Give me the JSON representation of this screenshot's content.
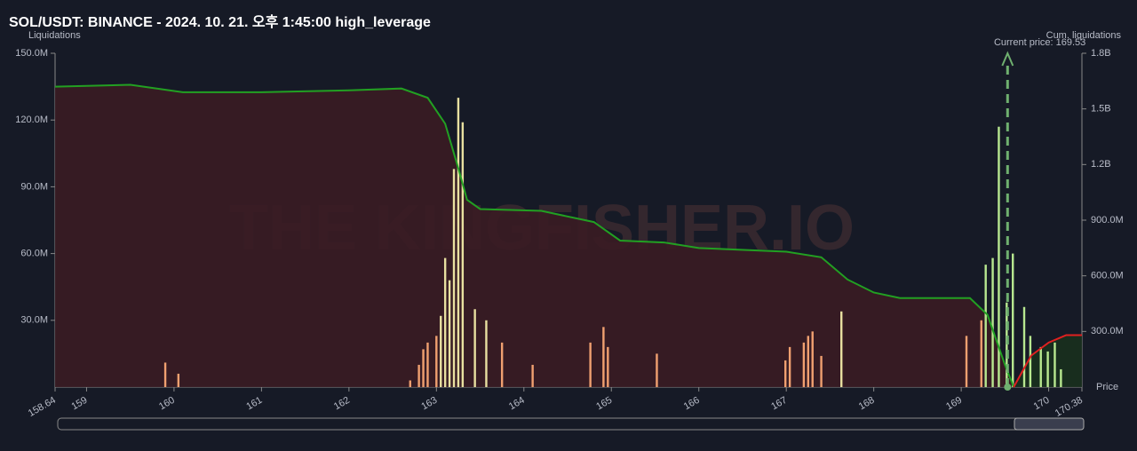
{
  "chart_data": {
    "type": "bar",
    "title": "SOL/USDT: BINANCE - 2024. 10. 21. 오후 1:45:00 high_leverage",
    "y_label": "Liquidations",
    "y2_label": "Cum. liquidations",
    "x_label": "Price",
    "annotation": "Current price: 169.53",
    "current_price": 169.53,
    "watermark": "THE KINGFISHER.IO",
    "xlim": [
      158.64,
      170.38
    ],
    "xticks": [
      158.64,
      159,
      160,
      161,
      162,
      163,
      164,
      165,
      166,
      167,
      168,
      169,
      170,
      170.38
    ],
    "ylim": [
      0,
      150000000
    ],
    "yticks": [
      {
        "value": 30000000,
        "label": "30.0M"
      },
      {
        "value": 60000000,
        "label": "60.0M"
      },
      {
        "value": 90000000,
        "label": "90.0M"
      },
      {
        "value": 120000000,
        "label": "120.0M"
      },
      {
        "value": 150000000,
        "label": "150.0M"
      }
    ],
    "y2lim": [
      0,
      1800000000
    ],
    "y2ticks": [
      {
        "value": 300000000,
        "label": "300.0M"
      },
      {
        "value": 600000000,
        "label": "600.0M"
      },
      {
        "value": 900000000,
        "label": "900.0M"
      },
      {
        "value": 1200000000,
        "label": "1.2B"
      },
      {
        "value": 1500000000,
        "label": "1.5B"
      },
      {
        "value": 1800000000,
        "label": "1.8B"
      }
    ],
    "series": [
      {
        "type": "bar",
        "color": "#f0a070",
        "x": [
          159.9,
          160.05,
          162.7,
          162.8,
          162.85,
          162.9,
          163.0,
          163.75,
          164.1,
          164.76,
          164.91,
          164.96,
          165.52,
          166.99,
          167.04,
          167.2,
          167.25,
          167.3,
          167.4,
          169.06,
          169.23
        ],
        "values": [
          11000000,
          6000000,
          3000000,
          10000000,
          17000000,
          20000000,
          23000000,
          20000000,
          10000000,
          20000000,
          27000000,
          18000000,
          15000000,
          12000000,
          18000000,
          20000000,
          23000000,
          25000000,
          14000000,
          23000000,
          30000000
        ]
      },
      {
        "type": "bar",
        "color": "#e8e0a0",
        "x": [
          163.05,
          163.1,
          163.15,
          163.2,
          163.25,
          163.3,
          163.44,
          163.57,
          167.63
        ],
        "values": [
          32000000,
          58000000,
          48000000,
          98000000,
          130000000,
          119000000,
          35000000,
          30000000,
          34000000
        ]
      },
      {
        "type": "bar",
        "color": "#b8e890",
        "x": [
          169.28,
          169.36,
          169.43,
          169.52,
          169.59,
          169.72,
          169.79,
          169.91,
          169.99,
          170.07,
          170.14
        ],
        "values": [
          55000000,
          58000000,
          117000000,
          38000000,
          60000000,
          36000000,
          23000000,
          18000000,
          16000000,
          20000000,
          8000000
        ]
      },
      {
        "type": "line",
        "axis": "y2",
        "color": "#22a022",
        "fill": "#3a1c24",
        "x": [
          158.64,
          159.5,
          160.1,
          161,
          162,
          162.6,
          162.9,
          163.1,
          163.25,
          163.35,
          163.5,
          164.2,
          164.8,
          165.1,
          165.6,
          166.0,
          167.0,
          167.4,
          167.7,
          168.0,
          168.3,
          169.1,
          169.3,
          169.5,
          169.6
        ],
        "values": [
          1620000000,
          1630000000,
          1590000000,
          1590000000,
          1600000000,
          1610000000,
          1560000000,
          1420000000,
          1180000000,
          1010000000,
          960000000,
          950000000,
          890000000,
          790000000,
          780000000,
          750000000,
          730000000,
          700000000,
          580000000,
          510000000,
          480000000,
          480000000,
          390000000,
          120000000,
          0
        ]
      },
      {
        "type": "line",
        "axis": "y2",
        "color": "#e02020",
        "fill": "#18301e",
        "x": [
          169.6,
          169.8,
          170.0,
          170.2,
          170.38
        ],
        "values": [
          0,
          170000000,
          240000000,
          280000000,
          280000000
        ]
      }
    ]
  }
}
